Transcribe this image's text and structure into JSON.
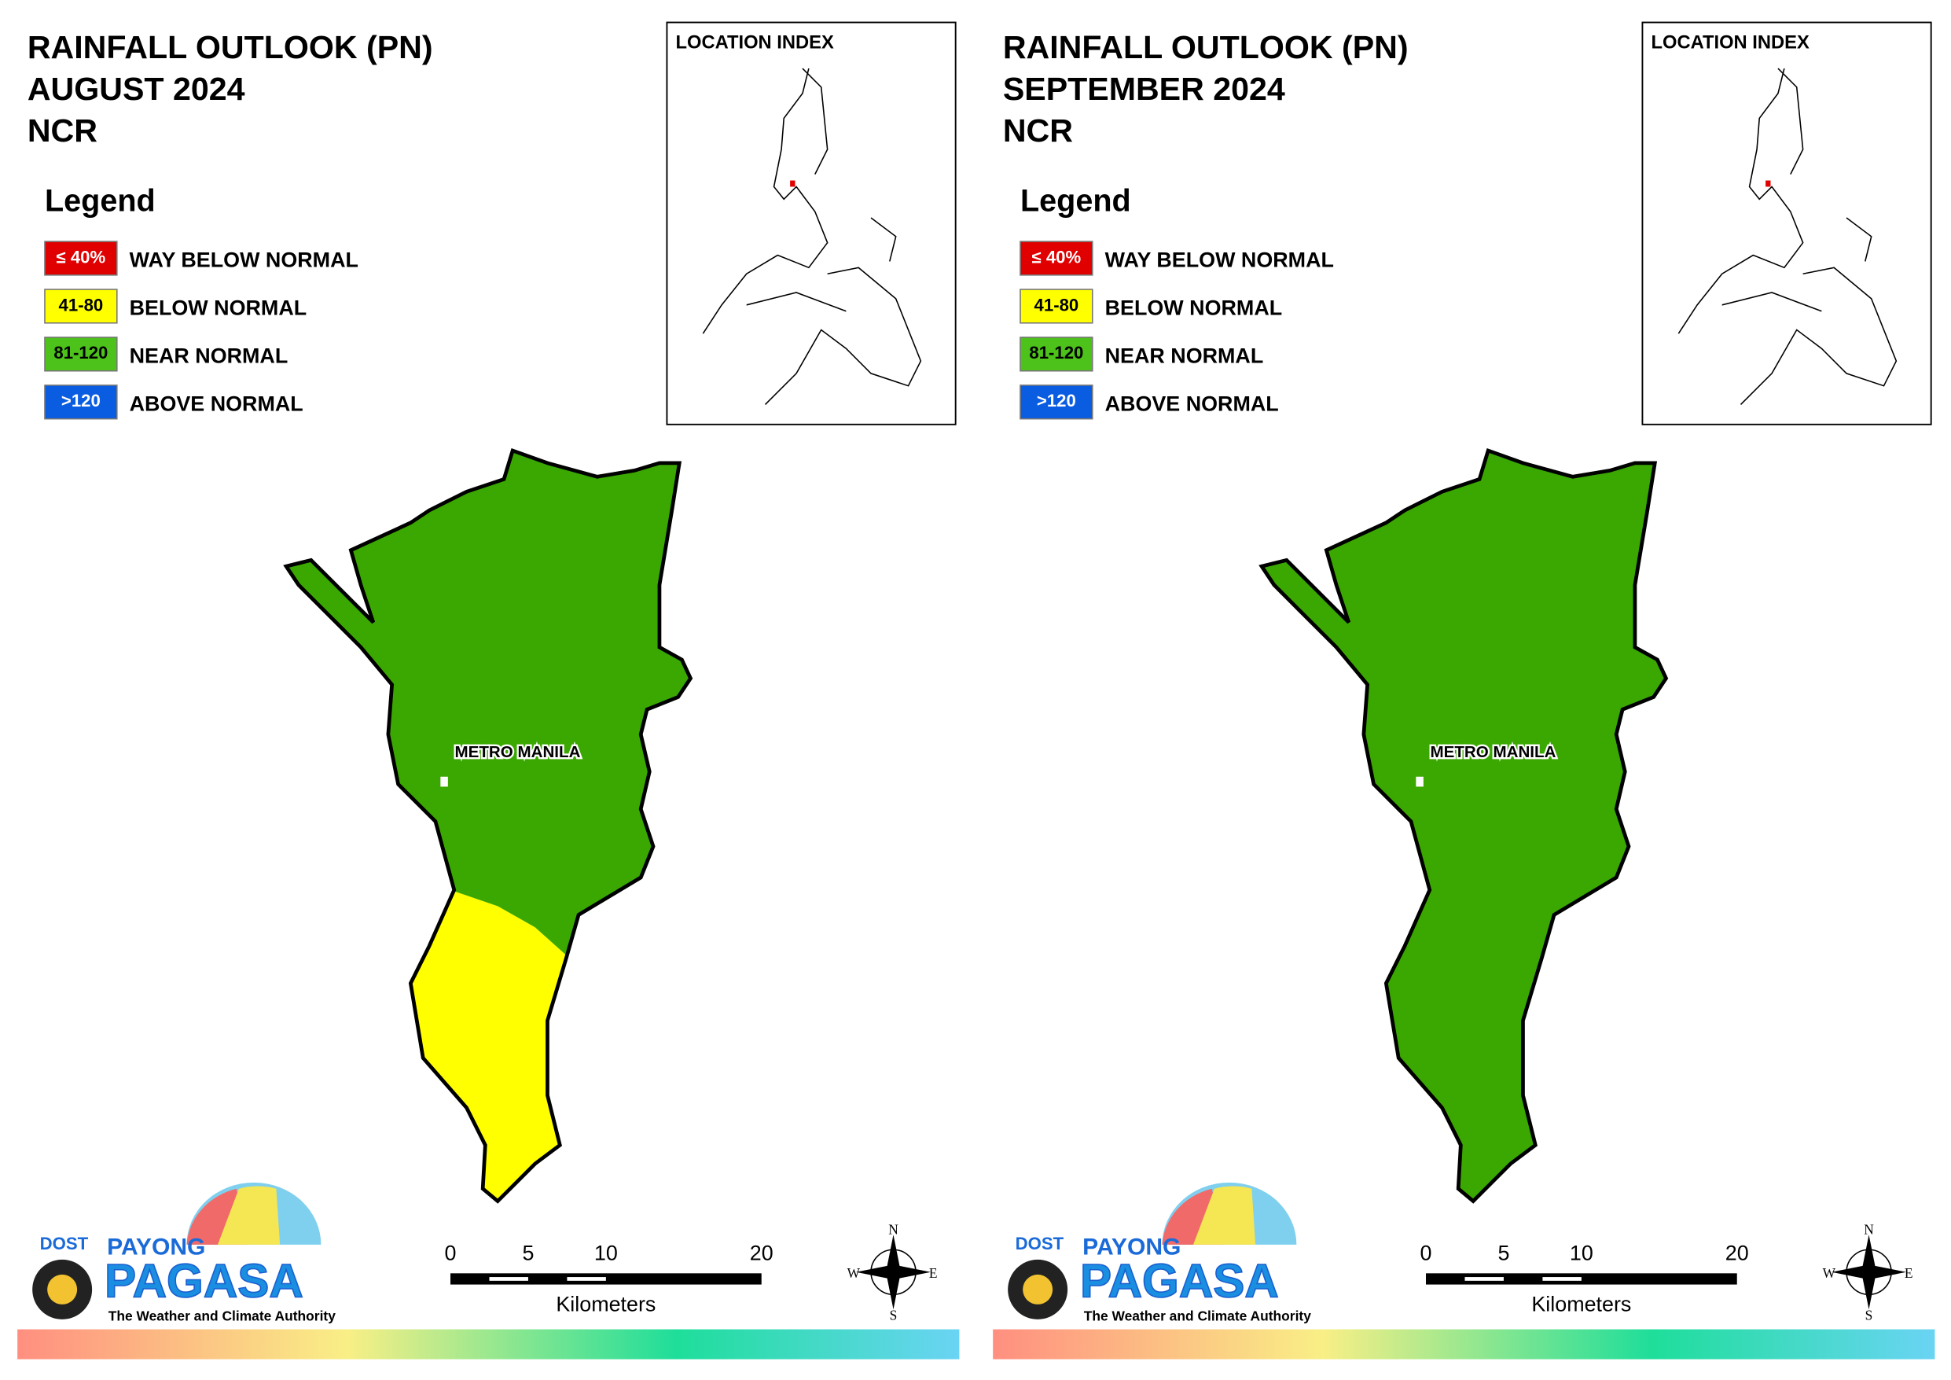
{
  "panels": [
    {
      "title_lines": [
        "RAINFALL OUTLOOK (PN)",
        "AUGUST 2024",
        "NCR"
      ],
      "location_index": "LOCATION INDEX",
      "legend": {
        "title": "Legend",
        "items": [
          {
            "swatch": "≤ 40%",
            "label": "WAY BELOW NORMAL",
            "color": "#e00000",
            "text_color": "#ffffff"
          },
          {
            "swatch": "41-80",
            "label": "BELOW NORMAL",
            "color": "#ffff00",
            "text_color": "#000000"
          },
          {
            "swatch": "81-120",
            "label": "NEAR NORMAL",
            "color": "#4cc21a",
            "text_color": "#000000"
          },
          {
            "swatch": ">120",
            "label": "ABOVE NORMAL",
            "color": "#0a5ce0",
            "text_color": "#ffffff"
          }
        ]
      },
      "map": {
        "label": "METRO MANILA",
        "north_color": "#3aa800",
        "south_color": "#ffff00"
      },
      "scale": {
        "ticks": [
          0,
          5,
          10,
          20
        ],
        "unit": "Kilometers"
      },
      "compass": [
        "N",
        "E",
        "S",
        "W"
      ],
      "logo": {
        "agency": "DOST",
        "brand_top": "PAYONG",
        "brand": "PAGASA",
        "tagline": "The Weather and Climate Authority"
      }
    },
    {
      "title_lines": [
        "RAINFALL OUTLOOK (PN)",
        "SEPTEMBER 2024",
        "NCR"
      ],
      "location_index": "LOCATION INDEX",
      "legend": {
        "title": "Legend",
        "items": [
          {
            "swatch": "≤ 40%",
            "label": "WAY BELOW NORMAL",
            "color": "#e00000",
            "text_color": "#ffffff"
          },
          {
            "swatch": "41-80",
            "label": "BELOW NORMAL",
            "color": "#ffff00",
            "text_color": "#000000"
          },
          {
            "swatch": "81-120",
            "label": "NEAR NORMAL",
            "color": "#4cc21a",
            "text_color": "#000000"
          },
          {
            "swatch": ">120",
            "label": "ABOVE NORMAL",
            "color": "#0a5ce0",
            "text_color": "#ffffff"
          }
        ]
      },
      "map": {
        "label": "METRO MANILA",
        "north_color": "#3aa800",
        "south_color": "#3aa800"
      },
      "scale": {
        "ticks": [
          0,
          5,
          10,
          20
        ],
        "unit": "Kilometers"
      },
      "compass": [
        "N",
        "E",
        "S",
        "W"
      ],
      "logo": {
        "agency": "DOST",
        "brand_top": "PAYONG",
        "brand": "PAGASA",
        "tagline": "The Weather and Climate Authority"
      }
    }
  ]
}
